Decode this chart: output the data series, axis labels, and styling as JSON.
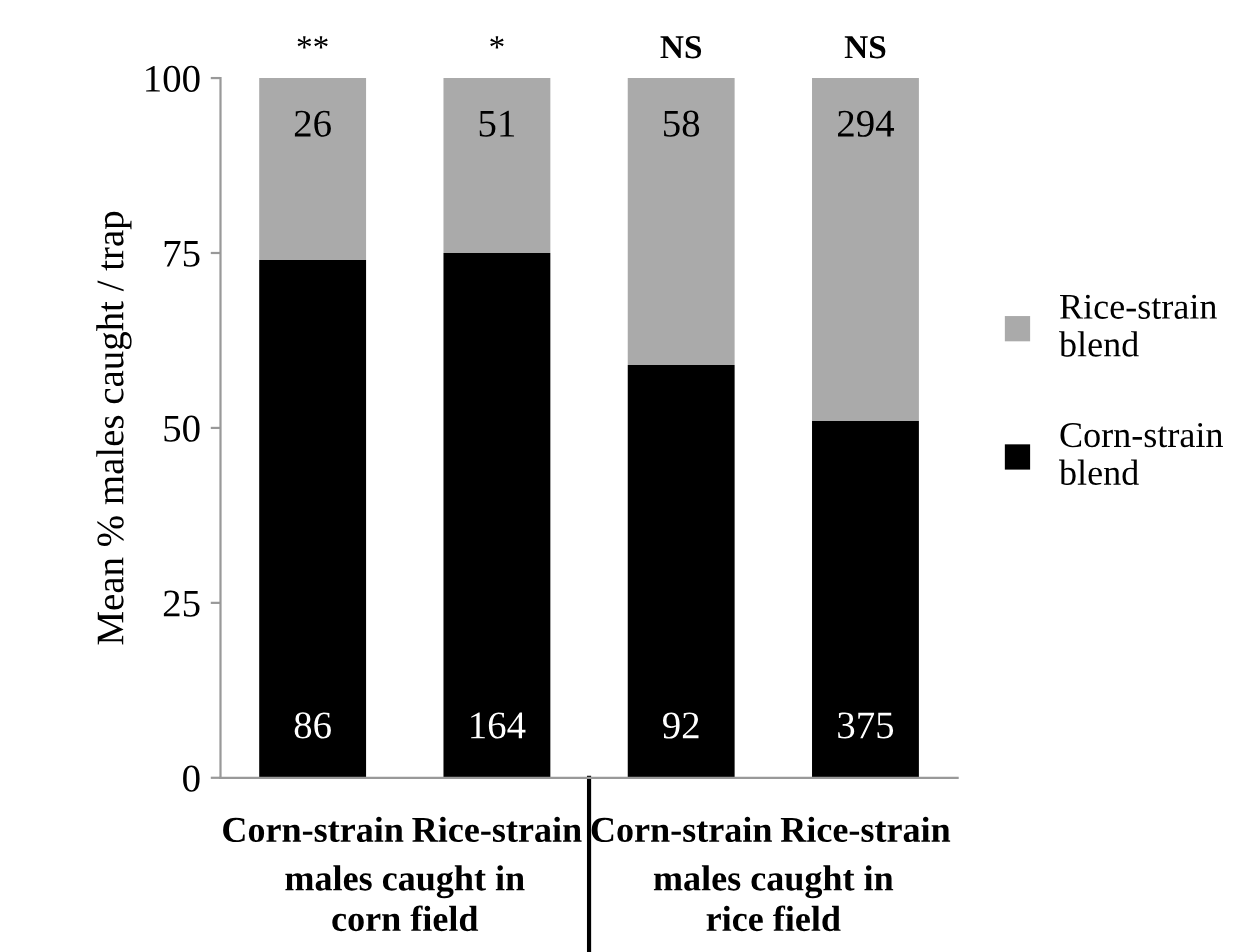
{
  "chart_data": {
    "type": "bar",
    "stacked": true,
    "ylabel": "Mean % males caught / trap",
    "categories": [
      "Corn-strain",
      "Rice-strain",
      "Corn-strain",
      "Rice-strain"
    ],
    "series": [
      {
        "name": "Corn-strain blend",
        "color": "#000000",
        "values": [
          74,
          75,
          59,
          51
        ]
      },
      {
        "name": "Rice-strain blend",
        "color": "#aaaaaa",
        "values": [
          26,
          25,
          41,
          49
        ]
      }
    ],
    "annotations": [
      "**",
      "*",
      "NS",
      "NS",
      "males caught in\ncorn field",
      "males caught in\nrice field",
      "86",
      "164",
      "92",
      "375",
      "26",
      "51",
      "58",
      "294"
    ],
    "ylim": [
      0,
      100
    ],
    "yticks": [
      0,
      25,
      50,
      75,
      100
    ],
    "grid": false,
    "legend": "right"
  }
}
